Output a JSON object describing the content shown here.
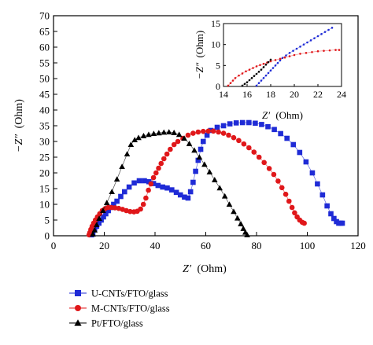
{
  "chart_data": {
    "type": "scatter",
    "xlabel_var": "Z′",
    "xlabel_unit": "(Ohm)",
    "ylabel_var": "−Z″",
    "ylabel_unit": "(Ohm)",
    "xlim": [
      0,
      120
    ],
    "ylim": [
      0,
      70
    ],
    "xticks": [
      "0",
      "20",
      "40",
      "60",
      "80",
      "100",
      "120"
    ],
    "yticks": [
      "0",
      "5",
      "10",
      "15",
      "20",
      "25",
      "30",
      "35",
      "40",
      "45",
      "50",
      "55",
      "60",
      "65",
      "70"
    ],
    "legend_position": "bottom-left",
    "series": [
      {
        "name": "U-CNTs/FTO/glass",
        "color": "#1f2bd6",
        "marker": "square",
        "x": [
          15.0,
          15.5,
          16.2,
          17.0,
          17.9,
          18.8,
          19.7,
          20.6,
          21.6,
          22.6,
          23.7,
          25.0,
          26.5,
          28.0,
          29.8,
          31.8,
          33.8,
          35.8,
          37.6,
          39.4,
          41.2,
          43.0,
          44.8,
          46.6,
          48.4,
          50.0,
          51.6,
          53.0,
          54.0,
          55.0,
          56.0,
          57.0,
          58.0,
          59.0,
          60.5,
          62.0,
          64.5,
          67.0,
          69.5,
          72.0,
          74.5,
          77.0,
          79.5,
          82.0,
          84.5,
          87.0,
          89.5,
          92.0,
          94.5,
          97.0,
          99.5,
          102.0,
          104.0,
          106.0,
          107.8,
          109.3,
          110.5,
          111.5,
          112.4,
          113.2,
          113.8
        ],
        "y": [
          0.3,
          1.0,
          2.0,
          3.0,
          4.0,
          5.0,
          6.0,
          7.0,
          8.0,
          9.0,
          10.0,
          11.0,
          12.5,
          14.0,
          15.5,
          16.8,
          17.5,
          17.5,
          17.2,
          16.6,
          16.0,
          15.5,
          15.2,
          14.6,
          13.8,
          13.0,
          12.3,
          12.0,
          14.0,
          17.0,
          20.5,
          24.0,
          27.5,
          30.0,
          32.0,
          33.5,
          34.5,
          35.0,
          35.6,
          35.9,
          36.0,
          36.0,
          35.8,
          35.4,
          34.7,
          33.8,
          32.5,
          31.0,
          29.0,
          26.5,
          23.5,
          20.0,
          16.5,
          13.0,
          9.5,
          7.0,
          5.5,
          4.5,
          4.0,
          4.0,
          4.0
        ]
      },
      {
        "name": "M-CNTs/FTO/glass",
        "color": "#e0171a",
        "marker": "circle",
        "x": [
          14.0,
          14.3,
          14.7,
          15.2,
          15.8,
          16.5,
          17.3,
          18.2,
          19.2,
          20.3,
          21.5,
          22.8,
          24.2,
          25.7,
          27.2,
          28.7,
          30.2,
          31.7,
          33.0,
          34.3,
          35.4,
          36.4,
          37.4,
          38.4,
          39.4,
          40.4,
          41.4,
          42.4,
          43.5,
          44.7,
          46.0,
          47.5,
          49.0,
          51.0,
          53.0,
          55.0,
          57.0,
          59.0,
          61.0,
          63.0,
          65.0,
          67.0,
          69.0,
          71.0,
          73.0,
          75.0,
          77.0,
          79.0,
          81.0,
          83.0,
          85.0,
          86.8,
          88.5,
          90.0,
          91.5,
          92.8,
          94.0,
          95.0,
          96.0,
          97.0,
          98.0,
          98.8
        ],
        "y": [
          0.3,
          1.0,
          2.0,
          3.0,
          4.0,
          5.0,
          6.0,
          7.0,
          8.0,
          8.6,
          9.0,
          9.0,
          8.9,
          8.7,
          8.4,
          8.0,
          7.7,
          7.6,
          7.8,
          8.5,
          10.0,
          12.0,
          14.5,
          16.5,
          18.5,
          20.0,
          21.5,
          23.0,
          24.5,
          26.0,
          27.5,
          29.0,
          30.0,
          31.0,
          32.0,
          32.6,
          33.0,
          33.2,
          33.3,
          33.3,
          33.0,
          32.6,
          32.0,
          31.2,
          30.3,
          29.2,
          28.0,
          26.6,
          25.0,
          23.3,
          21.4,
          19.5,
          17.4,
          15.3,
          13.2,
          11.0,
          9.0,
          7.3,
          6.0,
          5.0,
          4.3,
          4.0
        ]
      },
      {
        "name": "Pt/FTO/glass",
        "color": "#000000",
        "marker": "triangle",
        "x": [
          15.5,
          16.2,
          17.0,
          18.0,
          19.5,
          21.0,
          23.0,
          25.0,
          27.0,
          29.0,
          30.5,
          32.0,
          33.5,
          35.5,
          37.5,
          39.5,
          41.5,
          43.5,
          45.5,
          47.5,
          49.5,
          51.5,
          53.5,
          55.5,
          57.5,
          59.5,
          61.5,
          63.5,
          65.5,
          67.5,
          69.3,
          71.0,
          72.5,
          73.8,
          74.8,
          75.6,
          76.3
        ],
        "y": [
          0.5,
          1.8,
          3.5,
          5.5,
          8.0,
          10.5,
          14.0,
          18.0,
          22.0,
          26.0,
          29.0,
          30.5,
          31.2,
          31.8,
          32.2,
          32.5,
          32.7,
          32.9,
          33.0,
          32.8,
          32.2,
          31.0,
          29.3,
          27.2,
          25.0,
          22.7,
          20.3,
          17.8,
          15.2,
          12.6,
          10.0,
          7.7,
          5.6,
          3.8,
          2.3,
          1.1,
          0.3
        ]
      }
    ],
    "inset": {
      "xlim": [
        14,
        24
      ],
      "ylim": [
        0,
        15
      ],
      "xticks": [
        "14",
        "16",
        "18",
        "20",
        "22",
        "24"
      ],
      "yticks": [
        "0",
        "5",
        "10",
        "15"
      ],
      "xlabel_var": "Z′",
      "xlabel_unit": "(Ohm)",
      "ylabel_var": "−Z″",
      "ylabel_unit": "(Ohm)",
      "series": [
        {
          "color": "#1f2bd6",
          "x": [
            16.8,
            17.0,
            17.2,
            17.4,
            17.6,
            17.8,
            18.0,
            18.2,
            18.4,
            18.6,
            18.8,
            19.0,
            19.3,
            19.6,
            19.9,
            20.2,
            20.5,
            20.8,
            21.1,
            21.4,
            21.7,
            22.0,
            22.3,
            22.6,
            22.9,
            23.2
          ],
          "y": [
            0.2,
            0.8,
            1.4,
            2.0,
            2.6,
            3.2,
            3.8,
            4.4,
            5.0,
            5.6,
            6.2,
            6.8,
            7.4,
            8.0,
            8.5,
            9.0,
            9.5,
            10.0,
            10.5,
            11.0,
            11.5,
            12.0,
            12.5,
            13.0,
            13.5,
            14.0
          ]
        },
        {
          "color": "#e0171a",
          "x": [
            14.4,
            14.6,
            14.8,
            15.0,
            15.3,
            15.6,
            15.9,
            16.2,
            16.5,
            16.8,
            17.1,
            17.4,
            17.7,
            18.0,
            18.4,
            18.8,
            19.2,
            19.6,
            20.0,
            20.5,
            21.0,
            21.5,
            22.0,
            22.5,
            23.0,
            23.5,
            23.8
          ],
          "y": [
            0.2,
            0.8,
            1.4,
            2.0,
            2.6,
            3.1,
            3.6,
            4.0,
            4.4,
            4.8,
            5.1,
            5.4,
            5.7,
            6.0,
            6.3,
            6.6,
            6.9,
            7.2,
            7.5,
            7.8,
            8.0,
            8.2,
            8.4,
            8.5,
            8.6,
            8.7,
            8.7
          ]
        },
        {
          "color": "#000000",
          "x": [
            15.6,
            15.8,
            16.0,
            16.2,
            16.4,
            16.6,
            16.8,
            17.0,
            17.2,
            17.4,
            17.6,
            17.8,
            18.0
          ],
          "y": [
            0.2,
            0.6,
            1.0,
            1.5,
            2.0,
            2.5,
            3.0,
            3.5,
            4.0,
            4.6,
            5.2,
            5.8,
            6.4
          ]
        }
      ]
    }
  }
}
